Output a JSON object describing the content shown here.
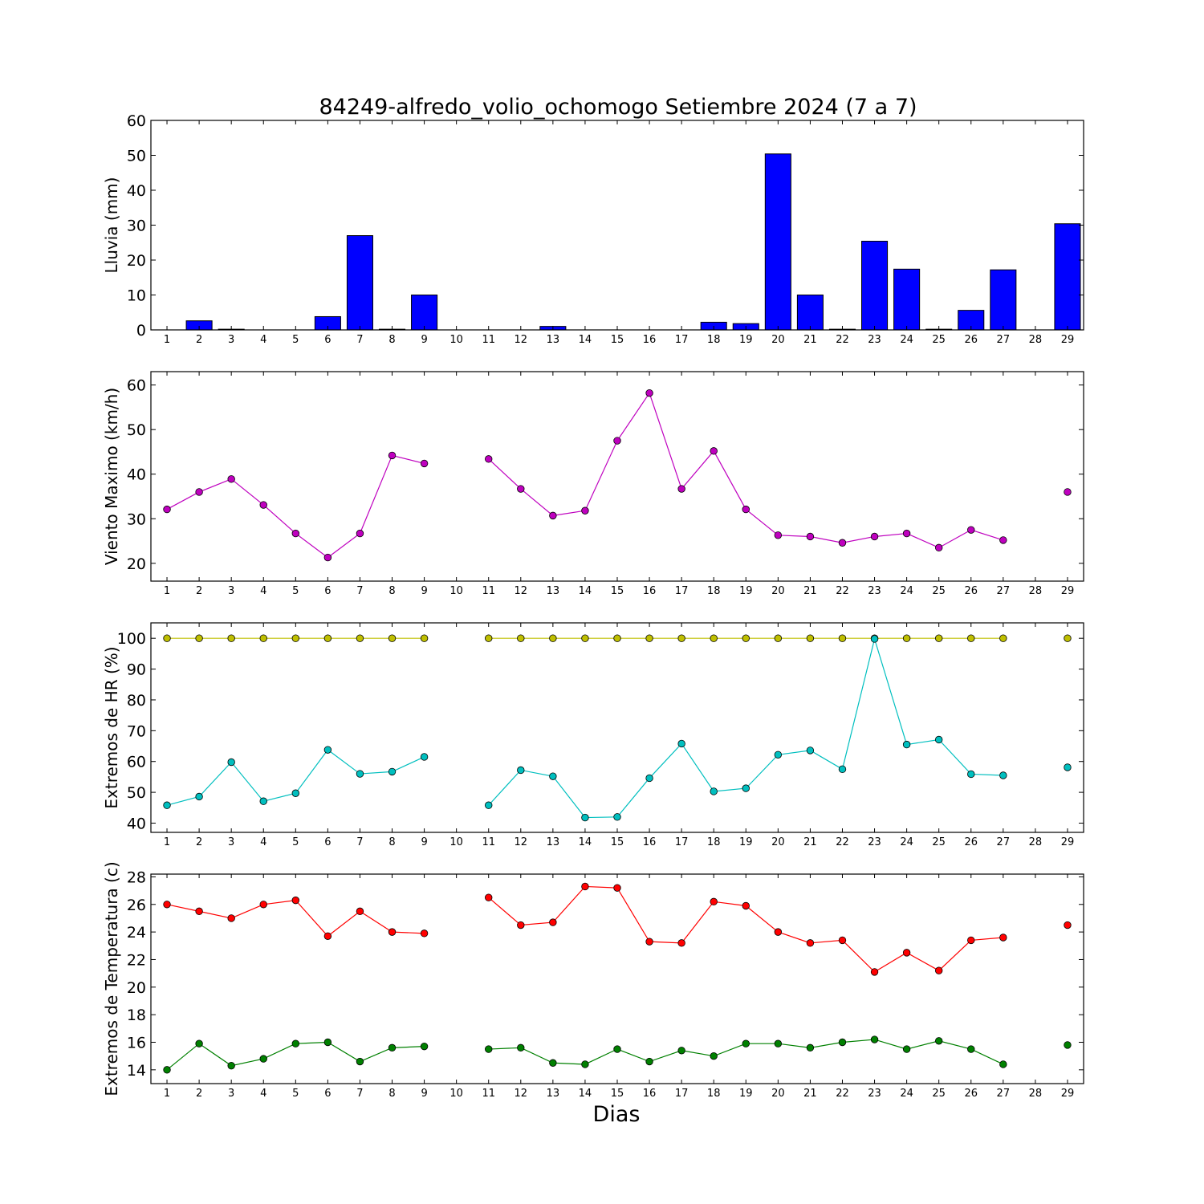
{
  "chart_data": {
    "title": "84249-alfredo_volio_ochomogo Setiembre 2024  (7 a 7)",
    "xlabel": "Dias",
    "x_categories": [
      "1",
      "2",
      "3",
      "4",
      "5",
      "6",
      "7",
      "8",
      "9",
      "10",
      "11",
      "12",
      "13",
      "14",
      "15",
      "16",
      "17",
      "18",
      "19",
      "20",
      "21",
      "22",
      "23",
      "24",
      "25",
      "26",
      "27",
      "28",
      "29"
    ],
    "panels": [
      {
        "type": "bar",
        "ylabel": "Lluvia (mm)",
        "ylim": [
          0,
          60
        ],
        "yticks": [
          0,
          10,
          20,
          30,
          40,
          50,
          60
        ],
        "series": [
          {
            "color": "#0000ff",
            "values": [
              0,
              2.6,
              0.2,
              0,
              0,
              3.8,
              27.0,
              0.2,
              10.0,
              0,
              0,
              0,
              1.0,
              0,
              0,
              0,
              0,
              2.2,
              1.8,
              50.4,
              10.0,
              0.2,
              25.4,
              17.4,
              0.2,
              5.6,
              17.2,
              0,
              30.4
            ]
          }
        ]
      },
      {
        "type": "line",
        "ylabel": "Viento Maximo (km/h)",
        "ylim": [
          16,
          63
        ],
        "yticks": [
          20,
          30,
          40,
          50,
          60
        ],
        "series": [
          {
            "color": "#bf00bf",
            "values": [
              32.1,
              36.0,
              38.9,
              33.1,
              26.7,
              21.3,
              26.7,
              44.2,
              42.4,
              null,
              43.4,
              36.7,
              30.7,
              31.8,
              47.5,
              58.2,
              36.7,
              45.2,
              32.1,
              26.3,
              26.0,
              24.6,
              26.0,
              26.7,
              23.5,
              27.5,
              25.2,
              null,
              36.0
            ]
          }
        ]
      },
      {
        "type": "line",
        "ylabel": "Extremos de HR (%)",
        "ylim": [
          37,
          105
        ],
        "yticks": [
          40,
          50,
          60,
          70,
          80,
          90,
          100
        ],
        "series": [
          {
            "color": "#bfbf00",
            "values": [
              100,
              100,
              100,
              100,
              100,
              100,
              100,
              100,
              100,
              null,
              100,
              100,
              100,
              100,
              100,
              100,
              100,
              100,
              100,
              100,
              100,
              100,
              100,
              100,
              100,
              100,
              100,
              null,
              100
            ]
          },
          {
            "color": "#00bfbf",
            "values": [
              45.8,
              48.6,
              59.8,
              47.1,
              49.7,
              63.8,
              56.0,
              56.7,
              61.5,
              null,
              45.8,
              57.2,
              55.2,
              41.8,
              42.0,
              54.6,
              65.8,
              50.3,
              51.3,
              62.2,
              63.6,
              57.5,
              99.8,
              65.5,
              67.1,
              55.9,
              55.5,
              null,
              58.1
            ]
          }
        ]
      },
      {
        "type": "line",
        "ylabel": "Extremos de Temperatura (c)",
        "ylim": [
          13,
          28.2
        ],
        "yticks": [
          14,
          16,
          18,
          20,
          22,
          24,
          26,
          28
        ],
        "series": [
          {
            "color": "#ff0000",
            "values": [
              26.0,
              25.5,
              25.0,
              26.0,
              26.3,
              23.7,
              25.5,
              24.0,
              23.9,
              null,
              26.5,
              24.5,
              24.7,
              27.3,
              27.2,
              23.3,
              23.2,
              26.2,
              25.9,
              24.0,
              23.2,
              23.4,
              21.1,
              22.5,
              21.2,
              23.4,
              23.6,
              null,
              24.5
            ]
          },
          {
            "color": "#008000",
            "values": [
              14.0,
              15.9,
              14.3,
              14.8,
              15.9,
              16.0,
              14.6,
              15.6,
              15.7,
              null,
              15.5,
              15.6,
              14.5,
              14.4,
              15.5,
              14.6,
              15.4,
              15.0,
              15.9,
              15.9,
              15.6,
              16.0,
              16.2,
              15.5,
              16.1,
              15.5,
              14.4,
              null,
              15.8
            ]
          }
        ]
      }
    ]
  }
}
